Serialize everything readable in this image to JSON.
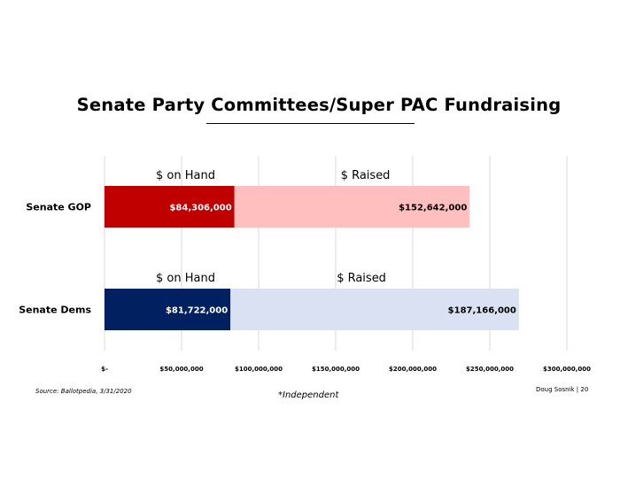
{
  "title": "Senate Party Committees/Super PAC Fundraising",
  "footer": {
    "source": "Source: Ballotpedia, 3/31/2020",
    "footnote": "*Independent",
    "credit": "Doug Sosnik | 20"
  },
  "chart_data": {
    "type": "bar",
    "orientation": "horizontal",
    "stacked": true,
    "categories": [
      "Senate GOP",
      "Senate Dems"
    ],
    "series": [
      {
        "name": "$ on Hand",
        "values": [
          84306000,
          81722000
        ],
        "labels": [
          "$84,306,000",
          "$81,722,000"
        ],
        "colors": [
          "#c00000",
          "#002060"
        ]
      },
      {
        "name": "$ Raised",
        "values": [
          152642000,
          187166000
        ],
        "labels": [
          "$152,642,000",
          "$187,166,000"
        ],
        "colors": [
          "#ffbfbf",
          "#d9e1f2"
        ]
      }
    ],
    "xlim": [
      0,
      300000000
    ],
    "xticks": [
      0,
      50000000,
      100000000,
      150000000,
      200000000,
      250000000,
      300000000
    ],
    "xtick_labels": [
      "$-",
      "$50,000,000",
      "$100,000,000",
      "$150,000,000",
      "$200,000,000",
      "$250,000,000",
      "$300,000,000"
    ],
    "grid": true,
    "colors": {
      "grid": "#d9d9d9",
      "label_light": "#ffffff",
      "label_dark": "#000000"
    }
  }
}
